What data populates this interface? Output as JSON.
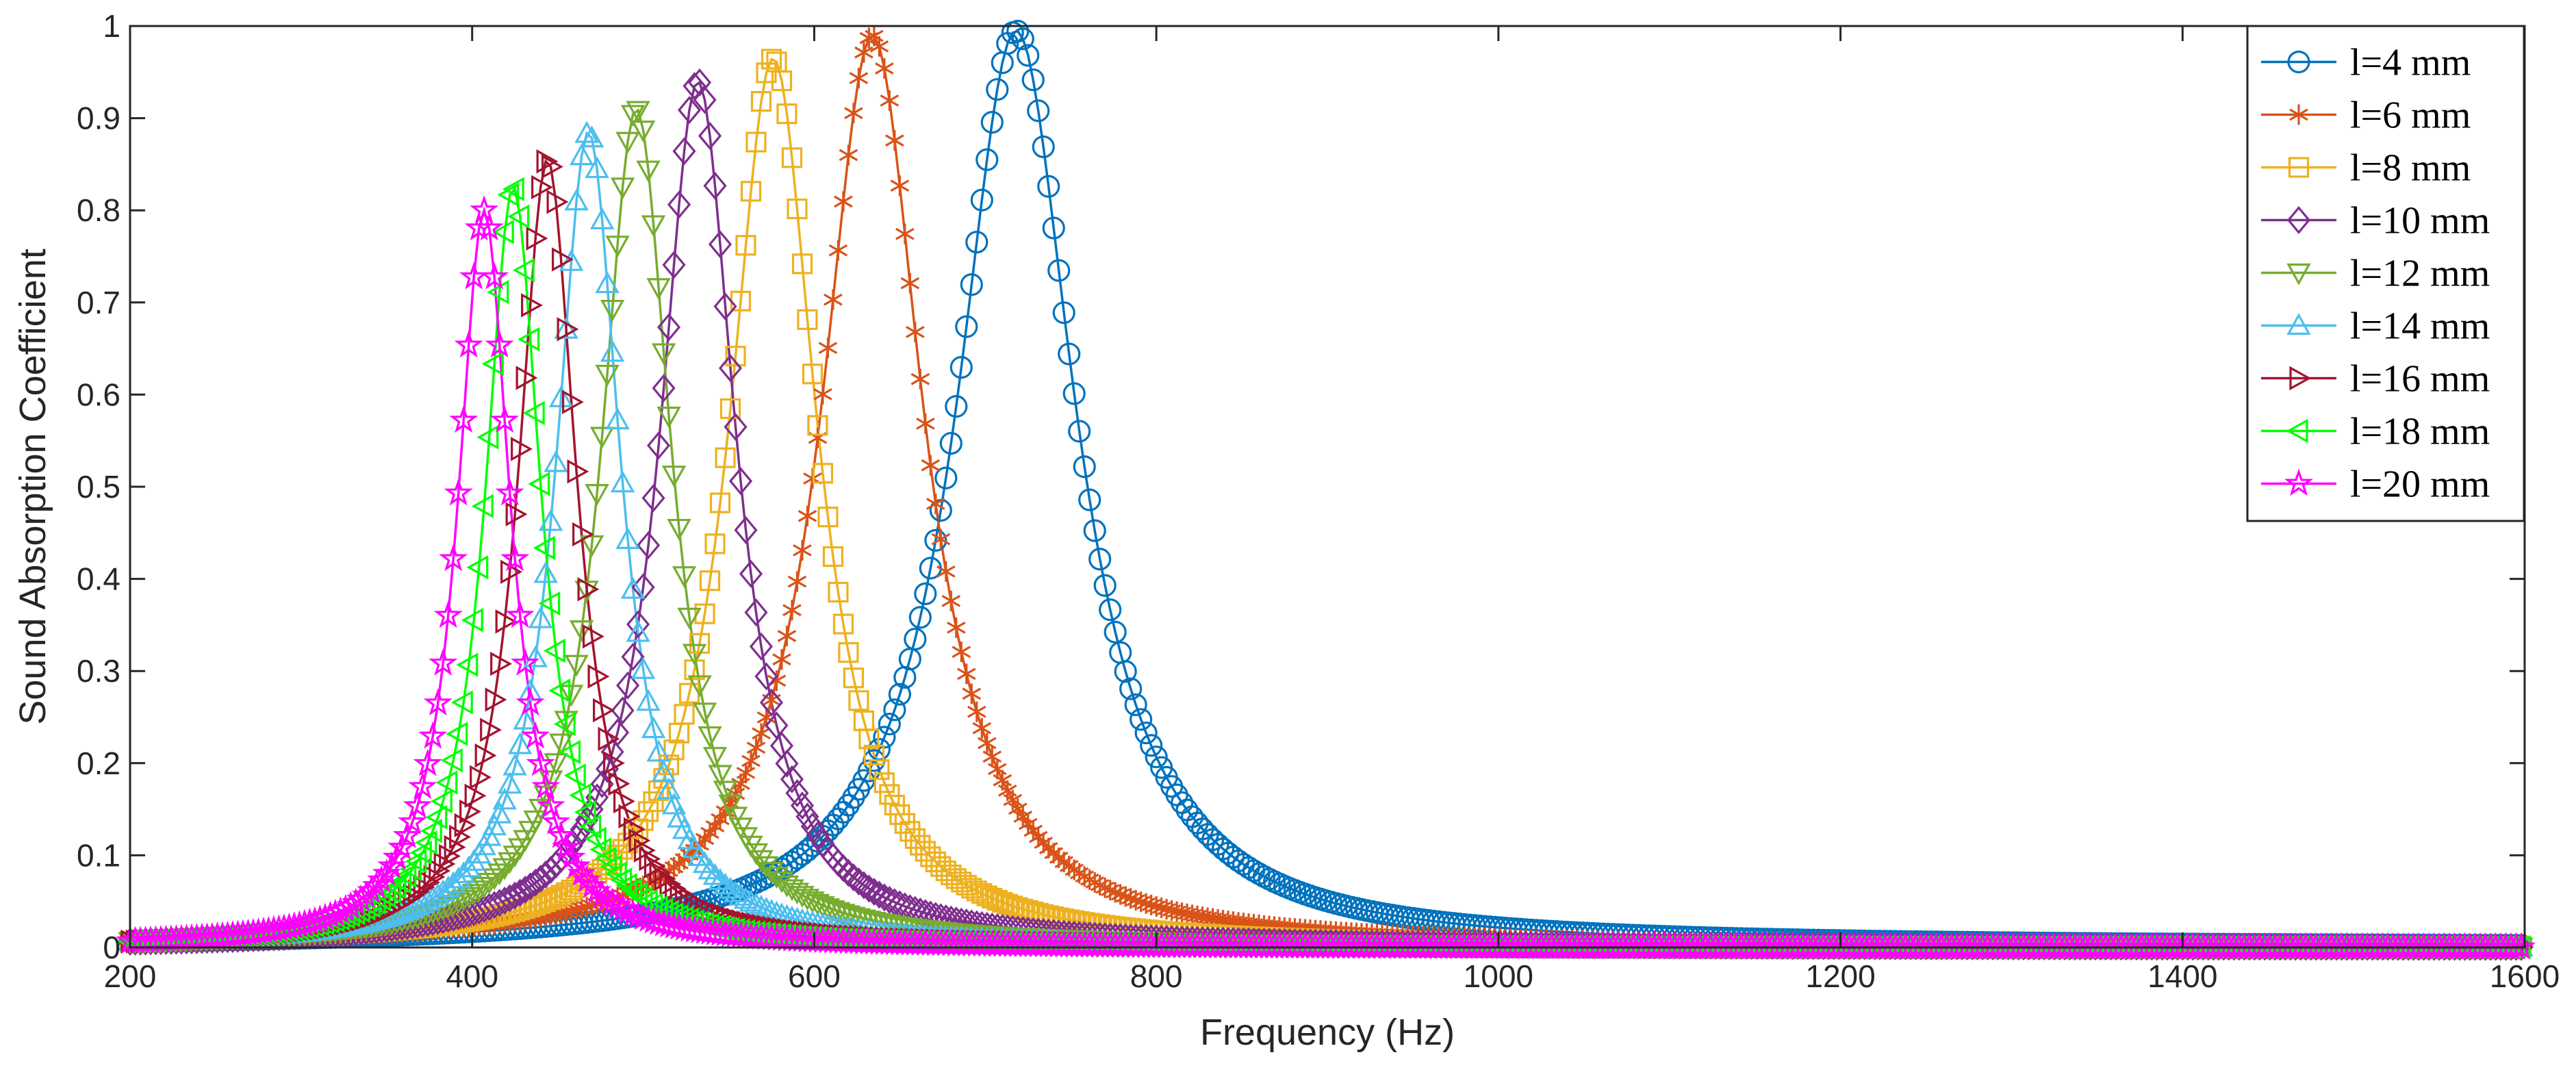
{
  "chart_data": {
    "type": "line",
    "title": "",
    "xlabel": "Frequency (Hz)",
    "ylabel": "Sound Absorption Coefficient",
    "xlim": [
      200,
      1600
    ],
    "ylim": [
      0,
      1
    ],
    "xticks": [
      200,
      400,
      600,
      800,
      1000,
      1200,
      1400,
      1600
    ],
    "xtick_labels": [
      "200",
      "400",
      "600",
      "800",
      "1000",
      "1200",
      "1400",
      "1600"
    ],
    "yticks": [
      0,
      0.1,
      0.2,
      0.3,
      0.4,
      0.5,
      0.6,
      0.7,
      0.8,
      0.9,
      1
    ],
    "ytick_labels": [
      "0",
      "0.1",
      "0.2",
      "0.3",
      "0.4",
      "0.5",
      "0.6",
      "0.7",
      "0.8",
      "0.9",
      "1"
    ],
    "grid": false,
    "legend_position": "top-right",
    "series": [
      {
        "name": "l=4 mm",
        "marker": "circle",
        "color": "#0072BD",
        "peak_frequency": 718,
        "peak_value": 0.995,
        "half_width": 42
      },
      {
        "name": "l=6 mm",
        "marker": "asterisk",
        "color": "#D95319",
        "peak_frequency": 634,
        "peak_value": 0.99,
        "half_width": 36
      },
      {
        "name": "l=8 mm",
        "marker": "square",
        "color": "#EDB120",
        "peak_frequency": 576,
        "peak_value": 0.965,
        "half_width": 31
      },
      {
        "name": "l=10 mm",
        "marker": "diamond",
        "color": "#7E2F8E",
        "peak_frequency": 532,
        "peak_value": 0.94,
        "half_width": 27
      },
      {
        "name": "l=12 mm",
        "marker": "triangle-down",
        "color": "#77AC30",
        "peak_frequency": 496,
        "peak_value": 0.91,
        "half_width": 25
      },
      {
        "name": "l=14 mm",
        "marker": "triangle-up",
        "color": "#4DBEEE",
        "peak_frequency": 468,
        "peak_value": 0.885,
        "half_width": 23
      },
      {
        "name": "l=16 mm",
        "marker": "triangle-right",
        "color": "#A2142F",
        "peak_frequency": 444,
        "peak_value": 0.855,
        "half_width": 21
      },
      {
        "name": "l=18 mm",
        "marker": "triangle-left",
        "color": "#00FF00",
        "peak_frequency": 424,
        "peak_value": 0.825,
        "half_width": 20
      },
      {
        "name": "l=20 mm",
        "marker": "pentagram",
        "color": "#FF00FF",
        "peak_frequency": 407,
        "peak_value": 0.8,
        "half_width": 19
      }
    ]
  }
}
